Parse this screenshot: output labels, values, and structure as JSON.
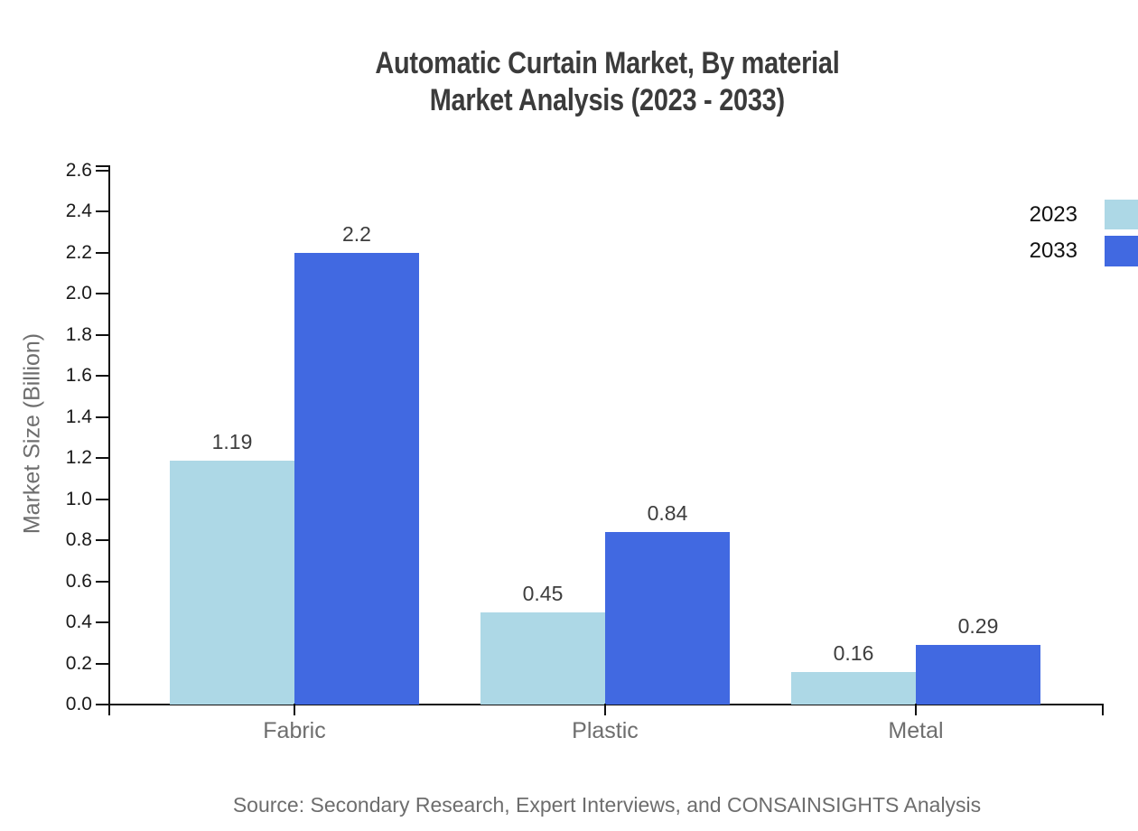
{
  "title": {
    "line1": "Automatic Curtain Market, By material",
    "line2": "Market Analysis (2023 - 2033)"
  },
  "source_text": "Source: Secondary Research, Expert Interviews, and CONSAINSIGHTS Analysis",
  "legend": {
    "items": [
      {
        "label": "2023",
        "color": "#ADD8E6"
      },
      {
        "label": "2033",
        "color": "#4169E1"
      }
    ],
    "position": "upper right"
  },
  "colors": {
    "series_2023": "#ADD8E6",
    "series_2033": "#4169E1",
    "axis": "#111111",
    "title_text": "#3b3b3b",
    "muted_text": "#6e6e6e",
    "value_label_text": "#3d3d3d"
  },
  "chart_data": {
    "type": "bar",
    "title": "Automatic Curtain Market, By material Market Analysis (2023 - 2033)",
    "categories": [
      "Fabric",
      "Plastic",
      "Metal"
    ],
    "series": [
      {
        "name": "2023",
        "color": "#ADD8E6",
        "values": [
          1.19,
          0.45,
          0.16
        ]
      },
      {
        "name": "2033",
        "color": "#4169E1",
        "values": [
          2.2,
          0.84,
          0.29
        ]
      }
    ],
    "xlabel": "",
    "ylabel": "Market Size (Billion)",
    "ylim": [
      0,
      2.6
    ],
    "ytick_step": 0.2,
    "ytick_format_decimals": 1,
    "grid": false,
    "value_labels": true,
    "legend_position": "upper right"
  }
}
